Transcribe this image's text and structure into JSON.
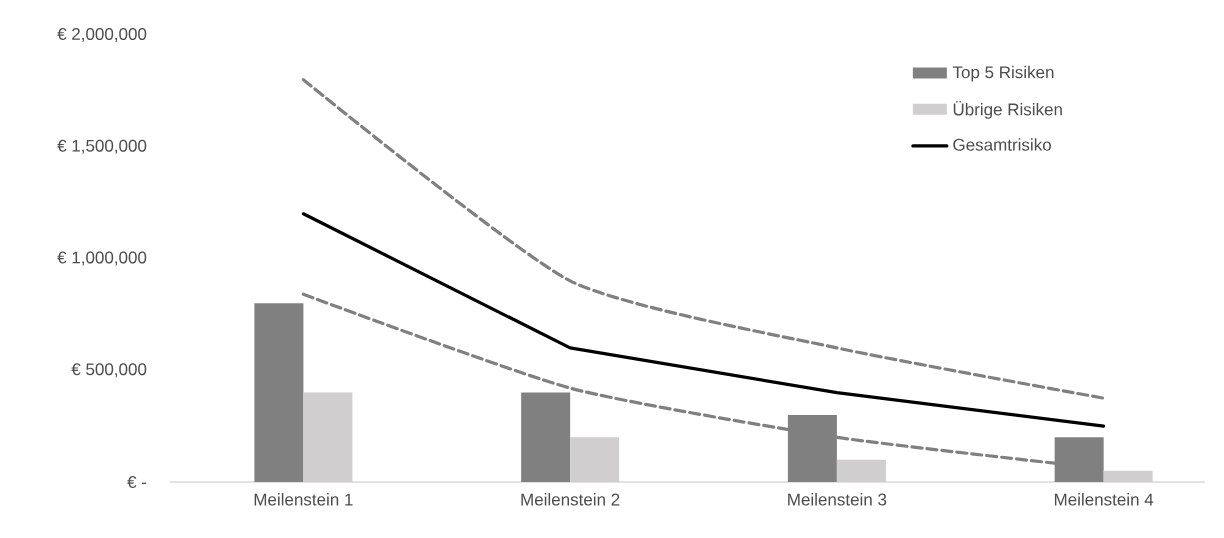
{
  "chart_data": {
    "type": "bar",
    "categories": [
      "Meilenstein 1",
      "Meilenstein 2",
      "Meilenstein 3",
      "Meilenstein 4"
    ],
    "series": [
      {
        "name": "Top 5 Risiken",
        "color": "#808080",
        "values": [
          800000,
          400000,
          300000,
          200000
        ]
      },
      {
        "name": "Übrige Risiken",
        "color": "#d0cece",
        "values": [
          400000,
          200000,
          100000,
          50000
        ]
      },
      {
        "name": "Gesamtrisiko",
        "type": "line",
        "color": "#000000",
        "line_style": "solid",
        "values": [
          1200000,
          600000,
          400000,
          250000
        ]
      },
      {
        "type": "line",
        "color": "#808080",
        "line_style": "dashed",
        "values": [
          1800000,
          900000,
          600000,
          375000
        ]
      },
      {
        "type": "line",
        "color": "#808080",
        "line_style": "dashed",
        "values": [
          840000,
          420000,
          200000,
          60000
        ]
      }
    ],
    "ylim": [
      0,
      2000000
    ],
    "yticks": [
      {
        "value": 0,
        "label": "€ -"
      },
      {
        "value": 500000,
        "label": "€ 500,000"
      },
      {
        "value": 1000000,
        "label": "€ 1,000,000"
      },
      {
        "value": 1500000,
        "label": "€ 1,500,000"
      },
      {
        "value": 2000000,
        "label": "€ 2,000,000"
      }
    ],
    "grid": false,
    "legend": "top right"
  }
}
